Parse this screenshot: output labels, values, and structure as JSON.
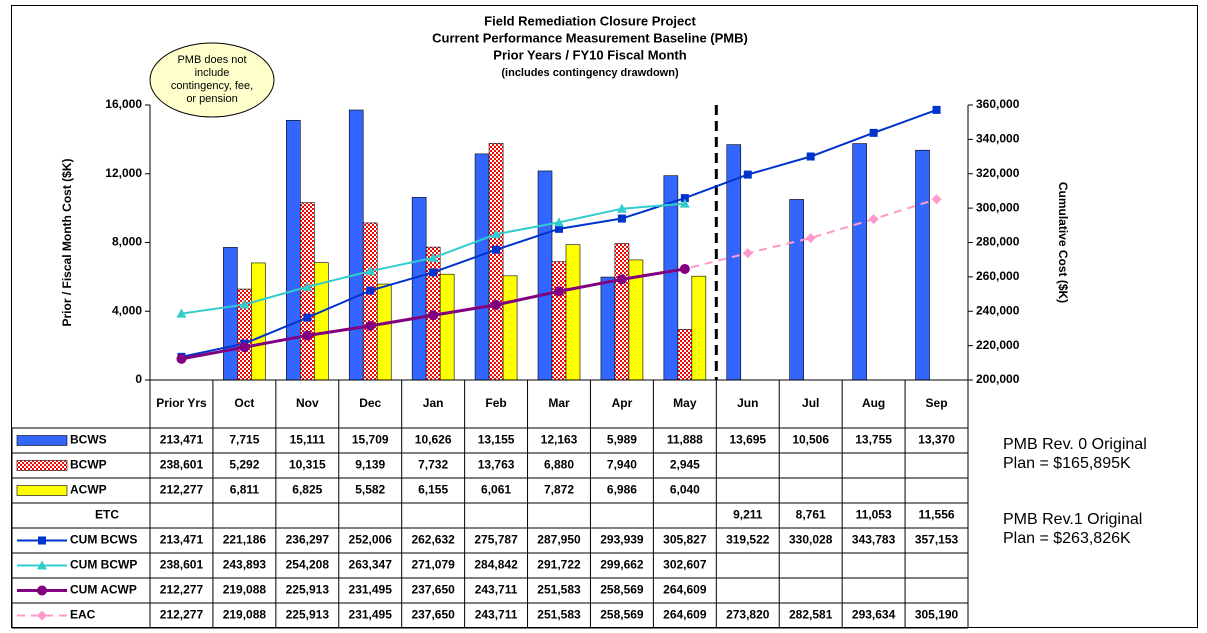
{
  "chart_data": {
    "type": "bar",
    "title_lines": [
      "Field Remediation Closure Project",
      "Current Performance Measurement Baseline (PMB)",
      "Prior Years / FY10 Fiscal Month",
      "(includes contingency drawdown)"
    ],
    "callout_lines": [
      "PMB does not",
      "include",
      "contingency, fee,",
      "or pension"
    ],
    "ylabel": "Prior / Fiscal Month Cost ($K)",
    "y2label": "Cumulative Cost ($K)",
    "categories": [
      "Prior Yrs",
      "Oct",
      "Nov",
      "Dec",
      "Jan",
      "Feb",
      "Mar",
      "Apr",
      "May",
      "Jun",
      "Jul",
      "Aug",
      "Sep"
    ],
    "ylim": [
      0,
      16000
    ],
    "yticks": [
      0,
      {
        "value": 4000,
        "label": "4,000"
      },
      {
        "value": 8000,
        "label": "8,000"
      },
      {
        "value": 12000,
        "label": "12,000"
      },
      {
        "value": 16000,
        "label": "16,000"
      }
    ],
    "y2lim": [
      200000,
      360000
    ],
    "y2ticks": [
      {
        "value": 200000,
        "label": "200,000"
      },
      {
        "value": 220000,
        "label": "220,000"
      },
      {
        "value": 240000,
        "label": "240,000"
      },
      {
        "value": 260000,
        "label": "260,000"
      },
      {
        "value": 280000,
        "label": "280,000"
      },
      {
        "value": 300000,
        "label": "300,000"
      },
      {
        "value": 320000,
        "label": "320,000"
      },
      {
        "value": 340000,
        "label": "340,000"
      },
      {
        "value": 360000,
        "label": "360,000"
      }
    ],
    "series": [
      {
        "name": "BCWS",
        "kind": "bar",
        "color": "#3366ff",
        "axis": "y",
        "values": [
          213471,
          7715,
          15111,
          15709,
          10626,
          13155,
          12163,
          5989,
          11888,
          13695,
          10506,
          13755,
          13370
        ],
        "value_labels": [
          "213,471",
          "7,715",
          "15,111",
          "15,709",
          "10,626",
          "13,155",
          "12,163",
          "5,989",
          "11,888",
          "13,695",
          "10,506",
          "13,755",
          "13,370"
        ]
      },
      {
        "name": "BCWP",
        "kind": "bar",
        "color": "#ff0000",
        "pattern": "checker",
        "axis": "y",
        "values": [
          238601,
          5292,
          10315,
          9139,
          7732,
          13763,
          6880,
          7940,
          2945,
          null,
          null,
          null,
          null
        ],
        "value_labels": [
          "238,601",
          "5,292",
          "10,315",
          "9,139",
          "7,732",
          "13,763",
          "6,880",
          "7,940",
          "2,945",
          null,
          null,
          null,
          null
        ]
      },
      {
        "name": "ACWP",
        "kind": "bar",
        "color": "#ffff00",
        "axis": "y",
        "values": [
          212277,
          6811,
          6825,
          5582,
          6155,
          6061,
          7872,
          6986,
          6040,
          null,
          null,
          null,
          null
        ],
        "value_labels": [
          "212,277",
          "6,811",
          "6,825",
          "5,582",
          "6,155",
          "6,061",
          "7,872",
          "6,986",
          "6,040",
          null,
          null,
          null,
          null
        ]
      },
      {
        "name": "ETC",
        "values": [
          null,
          null,
          null,
          null,
          null,
          null,
          null,
          null,
          null,
          9211,
          8761,
          11053,
          11556
        ],
        "value_labels": [
          null,
          null,
          null,
          null,
          null,
          null,
          null,
          null,
          null,
          "9,211",
          "8,761",
          "11,053",
          "11,556"
        ]
      },
      {
        "name": "EAC",
        "kind": "line",
        "color": "#ff99cc",
        "marker": "diamond",
        "dashed": true,
        "axis": "y2",
        "values": [
          212277,
          219088,
          225913,
          231495,
          237650,
          243711,
          251583,
          258569,
          264609,
          273820,
          282581,
          293634,
          305190
        ],
        "value_labels": [
          "212,277",
          "219,088",
          "225,913",
          "231,495",
          "237,650",
          "243,711",
          "251,583",
          "258,569",
          "264,609",
          "273,820",
          "282,581",
          "293,634",
          "305,190"
        ]
      },
      {
        "name": "CUM BCWS",
        "kind": "line",
        "color": "#0033cc",
        "marker": "square",
        "axis": "y2",
        "values": [
          213471,
          221186,
          236297,
          252006,
          262632,
          275787,
          287950,
          293939,
          305827,
          319522,
          330028,
          343783,
          357153
        ],
        "value_labels": [
          "213,471",
          "221,186",
          "236,297",
          "252,006",
          "262,632",
          "275,787",
          "287,950",
          "293,939",
          "305,827",
          "319,522",
          "330,028",
          "343,783",
          "357,153"
        ]
      },
      {
        "name": "CUM BCWP",
        "kind": "line",
        "color": "#33cccc",
        "marker": "triangle",
        "axis": "y2",
        "values": [
          238601,
          243893,
          254208,
          263347,
          271079,
          284842,
          291722,
          299662,
          302607,
          null,
          null,
          null,
          null
        ],
        "value_labels": [
          "238,601",
          "243,893",
          "254,208",
          "263,347",
          "271,079",
          "284,842",
          "291,722",
          "299,662",
          "302,607",
          null,
          null,
          null,
          null
        ]
      },
      {
        "name": "CUM ACWP",
        "kind": "line",
        "color": "#800080",
        "marker": "circle",
        "thick": true,
        "axis": "y2",
        "values": [
          212277,
          219088,
          225913,
          231495,
          237650,
          243711,
          251583,
          258569,
          264609,
          null,
          null,
          null,
          null
        ],
        "value_labels": [
          "212,277",
          "219,088",
          "225,913",
          "231,495",
          "237,650",
          "243,711",
          "251,583",
          "258,569",
          "264,609",
          null,
          null,
          null,
          null
        ]
      }
    ],
    "table_order": [
      0,
      1,
      2,
      3,
      5,
      6,
      7,
      4
    ],
    "notes": [
      [
        "PMB Rev. 0 Original",
        "Plan = $165,895K"
      ],
      [
        "PMB Rev.1 Original",
        "Plan = $263,826K"
      ]
    ]
  }
}
